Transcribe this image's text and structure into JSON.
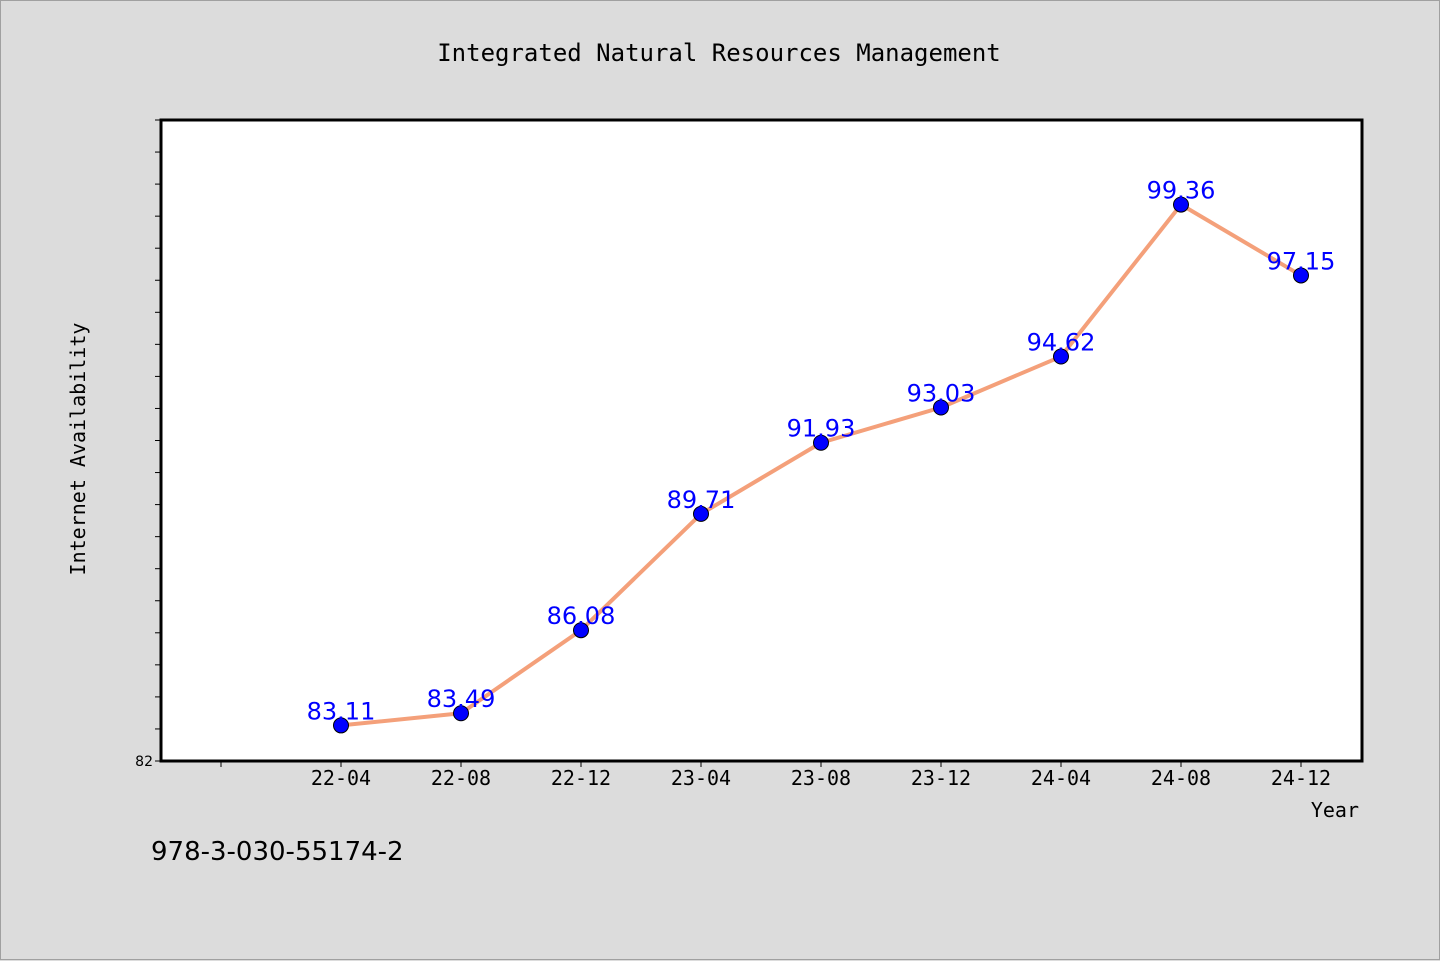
{
  "chart_data": {
    "type": "line",
    "title": "Integrated Natural Resources Management",
    "xlabel": "Year",
    "ylabel": "Internet Availability",
    "categories": [
      "22-04",
      "22-08",
      "22-12",
      "23-04",
      "23-08",
      "23-12",
      "24-04",
      "24-08",
      "24-12"
    ],
    "values": [
      83.11,
      83.49,
      86.08,
      89.71,
      91.93,
      93.03,
      94.62,
      99.36,
      97.15
    ],
    "value_labels": [
      "83.11",
      "83.49",
      "86.08",
      "89.71",
      "91.93",
      "93.03",
      "94.62",
      "99.36",
      "97.15"
    ],
    "ylim": [
      82,
      102
    ],
    "y_tick_labels": [
      "82"
    ],
    "grid": false,
    "line_color": "#f4a07a",
    "marker_color": "#0000ff",
    "label_color": "#0000ff"
  },
  "footer": {
    "isbn": "978-3-030-55174-2"
  }
}
